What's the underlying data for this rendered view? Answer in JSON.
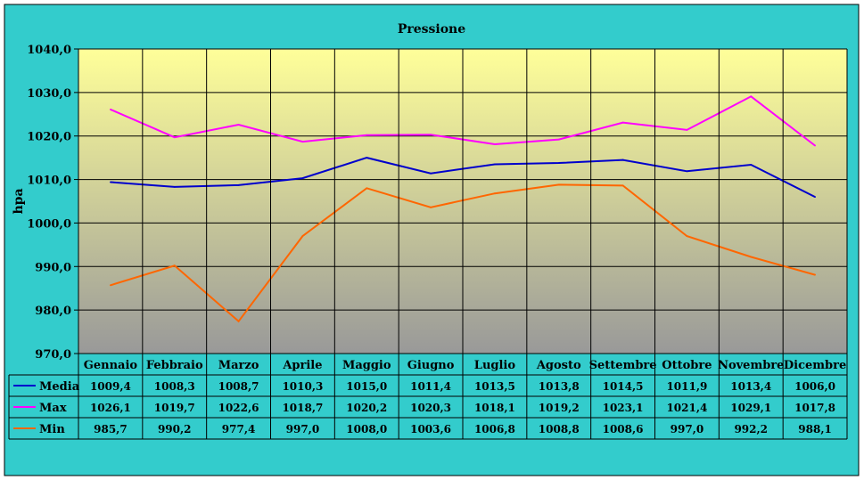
{
  "chart_data": {
    "type": "line",
    "title": "Pressione",
    "xlabel": "",
    "ylabel": "hpa",
    "ylim": [
      970,
      1040
    ],
    "ytick_values": [
      970,
      980,
      990,
      1000,
      1010,
      1020,
      1030,
      1040
    ],
    "ytick_labels": [
      "970,0",
      "980,0",
      "990,0",
      "1000,0",
      "1010,0",
      "1020,0",
      "1030,0",
      "1040,0"
    ],
    "categories": [
      "Gennaio",
      "Febbraio",
      "Marzo",
      "Aprile",
      "Maggio",
      "Giugno",
      "Luglio",
      "Agosto",
      "Settembre",
      "Ottobre",
      "Novembre",
      "Dicembre"
    ],
    "grid": true,
    "legend": "data-table",
    "series": [
      {
        "name": "Media",
        "color": "#0000CC",
        "values": [
          1009.4,
          1008.3,
          1008.7,
          1010.3,
          1015.0,
          1011.4,
          1013.5,
          1013.8,
          1014.5,
          1011.9,
          1013.4,
          1006.0
        ],
        "labels": [
          "1009,4",
          "1008,3",
          "1008,7",
          "1010,3",
          "1015,0",
          "1011,4",
          "1013,5",
          "1013,8",
          "1014,5",
          "1011,9",
          "1013,4",
          "1006,0"
        ]
      },
      {
        "name": "Max",
        "color": "#FF00FF",
        "values": [
          1026.1,
          1019.7,
          1022.6,
          1018.7,
          1020.2,
          1020.3,
          1018.1,
          1019.2,
          1023.1,
          1021.4,
          1029.1,
          1017.8
        ],
        "labels": [
          "1026,1",
          "1019,7",
          "1022,6",
          "1018,7",
          "1020,2",
          "1020,3",
          "1018,1",
          "1019,2",
          "1023,1",
          "1021,4",
          "1029,1",
          "1017,8"
        ]
      },
      {
        "name": "Min",
        "color": "#FF6600",
        "values": [
          985.7,
          990.2,
          977.4,
          997.0,
          1008.0,
          1003.6,
          1006.8,
          1008.8,
          1008.6,
          997.0,
          992.2,
          988.1
        ],
        "labels": [
          "985,7",
          "990,2",
          "977,4",
          "997,0",
          "1008,0",
          "1003,6",
          "1006,8",
          "1008,8",
          "1008,6",
          "997,0",
          "992,2",
          "988,1"
        ]
      }
    ],
    "colors": {
      "background": "#33CCCC",
      "plot_top": "#FFFF99",
      "plot_bottom": "#999999"
    }
  }
}
